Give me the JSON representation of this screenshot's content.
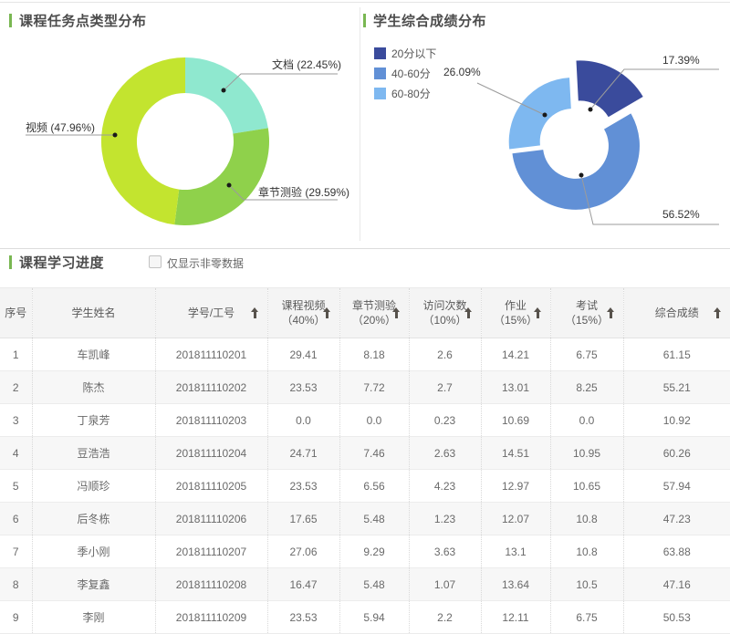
{
  "section_titles": {
    "left_chart": "课程任务点类型分布",
    "right_chart": "学生综合成绩分布",
    "table": "课程学习进度"
  },
  "accent_color": "#79b752",
  "filter": {
    "label": "仅显示非零数据",
    "checked": false
  },
  "chart_data": [
    {
      "type": "pie",
      "donut": true,
      "title": "课程任务点类型分布",
      "labels": [
        "文档",
        "章节测验",
        "视频"
      ],
      "values": [
        22.45,
        29.59,
        47.96
      ],
      "colors": [
        "#8fe8cf",
        "#8fd14b",
        "#c3e42f"
      ],
      "callouts": [
        "文档 (22.45%)",
        "章节测验 (29.59%)",
        "视频 (47.96%)"
      ]
    },
    {
      "type": "pie",
      "donut": true,
      "title": "学生综合成绩分布",
      "labels": [
        "20分以下",
        "40-60分",
        "60-80分"
      ],
      "values": [
        17.39,
        56.52,
        26.09
      ],
      "colors": [
        "#3a4b9c",
        "#6190d6",
        "#7eb8f0"
      ],
      "legend_position": "top-left",
      "callouts": [
        "17.39%",
        "56.52%",
        "26.09%"
      ]
    }
  ],
  "table": {
    "headers": [
      {
        "label": "序号",
        "sortable": false
      },
      {
        "label": "学生姓名",
        "sortable": false
      },
      {
        "label": "学号/工号",
        "sortable": true
      },
      {
        "label": "课程视频",
        "sub": "（40%）",
        "sortable": true
      },
      {
        "label": "章节测验",
        "sub": "（20%）",
        "sortable": true
      },
      {
        "label": "访问次数",
        "sub": "（10%）",
        "sortable": true
      },
      {
        "label": "作业",
        "sub": "（15%）",
        "sortable": true
      },
      {
        "label": "考试",
        "sub": "（15%）",
        "sortable": true
      },
      {
        "label": "综合成绩",
        "sortable": true
      }
    ],
    "rows": [
      [
        "1",
        "车凯峰",
        "201811110201",
        "29.41",
        "8.18",
        "2.6",
        "14.21",
        "6.75",
        "61.15"
      ],
      [
        "2",
        "陈杰",
        "201811110202",
        "23.53",
        "7.72",
        "2.7",
        "13.01",
        "8.25",
        "55.21"
      ],
      [
        "3",
        "丁泉芳",
        "201811110203",
        "0.0",
        "0.0",
        "0.23",
        "10.69",
        "0.0",
        "10.92"
      ],
      [
        "4",
        "豆浩浩",
        "201811110204",
        "24.71",
        "7.46",
        "2.63",
        "14.51",
        "10.95",
        "60.26"
      ],
      [
        "5",
        "冯顺珍",
        "201811110205",
        "23.53",
        "6.56",
        "4.23",
        "12.97",
        "10.65",
        "57.94"
      ],
      [
        "6",
        "后冬栋",
        "201811110206",
        "17.65",
        "5.48",
        "1.23",
        "12.07",
        "10.8",
        "47.23"
      ],
      [
        "7",
        "季小刚",
        "201811110207",
        "27.06",
        "9.29",
        "3.63",
        "13.1",
        "10.8",
        "63.88"
      ],
      [
        "8",
        "李复鑫",
        "201811110208",
        "16.47",
        "5.48",
        "1.07",
        "13.64",
        "10.5",
        "47.16"
      ],
      [
        "9",
        "李刚",
        "201811110209",
        "23.53",
        "5.94",
        "2.2",
        "12.11",
        "6.75",
        "50.53"
      ]
    ]
  }
}
